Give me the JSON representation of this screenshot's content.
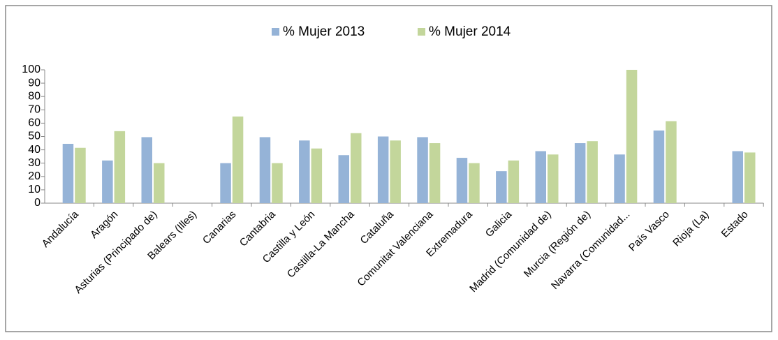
{
  "chart_data": {
    "type": "bar",
    "categories": [
      "Andalucía",
      "Aragón",
      "Asturias (Principado de)",
      "Balears (Illes)",
      "Canarias",
      "Cantabria",
      "Castilla y León",
      "Castilla-La Mancha",
      "Cataluña",
      "Comunitat Valenciana",
      "Extremadura",
      "Galicia",
      "Madrid (Comunidad de)",
      "Murcia (Región de)",
      "Navarra (Comunidad...",
      "País Vasco",
      "Rioja (La)",
      "Estado"
    ],
    "series": [
      {
        "name": "% Mujer 2013",
        "color": "#95b3d7",
        "values": [
          44.5,
          32,
          49.5,
          null,
          30,
          49.5,
          47,
          36,
          50,
          49.5,
          34,
          24,
          39,
          45,
          36.5,
          54.5,
          null,
          39
        ]
      },
      {
        "name": "% Mujer 2014",
        "color": "#c3d69b",
        "values": [
          41.5,
          54,
          30,
          null,
          65,
          30,
          41,
          52.5,
          47,
          45,
          30,
          32,
          36.5,
          46.5,
          100,
          61.5,
          null,
          38
        ]
      }
    ],
    "ylim": [
      0,
      100
    ],
    "yticks": [
      0,
      10,
      20,
      30,
      40,
      50,
      60,
      70,
      80,
      90,
      100
    ],
    "grid": false,
    "legend": "top"
  }
}
